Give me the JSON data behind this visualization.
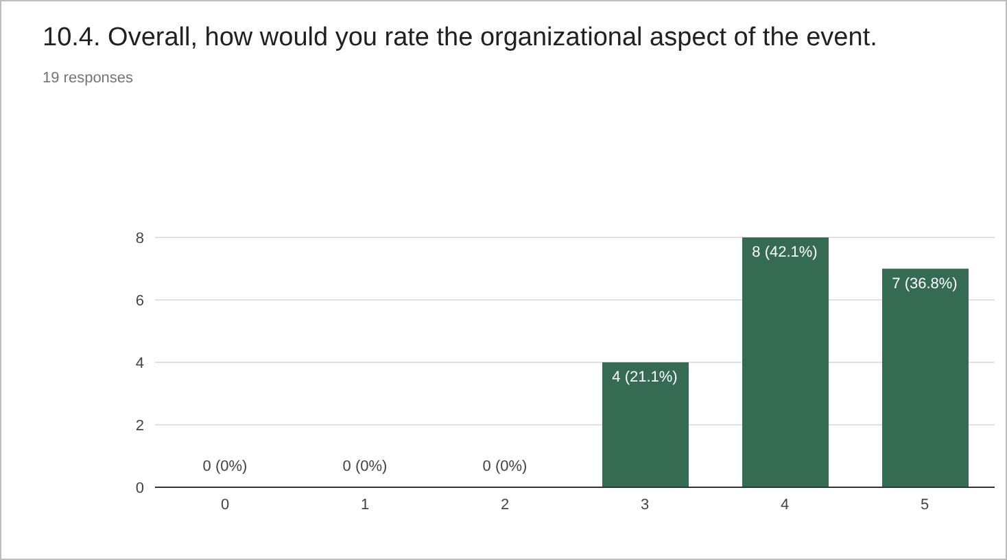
{
  "chart_data": {
    "type": "bar",
    "title": "10.4. Overall, how would you rate the organizational aspect of the event.",
    "subtitle": "19 responses",
    "categories": [
      "0",
      "1",
      "2",
      "3",
      "4",
      "5"
    ],
    "values": [
      0,
      0,
      0,
      4,
      8,
      7
    ],
    "value_labels": [
      "0 (0%)",
      "0 (0%)",
      "0 (0%)",
      "4 (21.1%)",
      "8 (42.1%)",
      "7 (36.8%)"
    ],
    "color": "#356b52",
    "ylim": [
      0,
      8
    ],
    "yticks": [
      0,
      2,
      4,
      6,
      8
    ],
    "grid": "y"
  }
}
